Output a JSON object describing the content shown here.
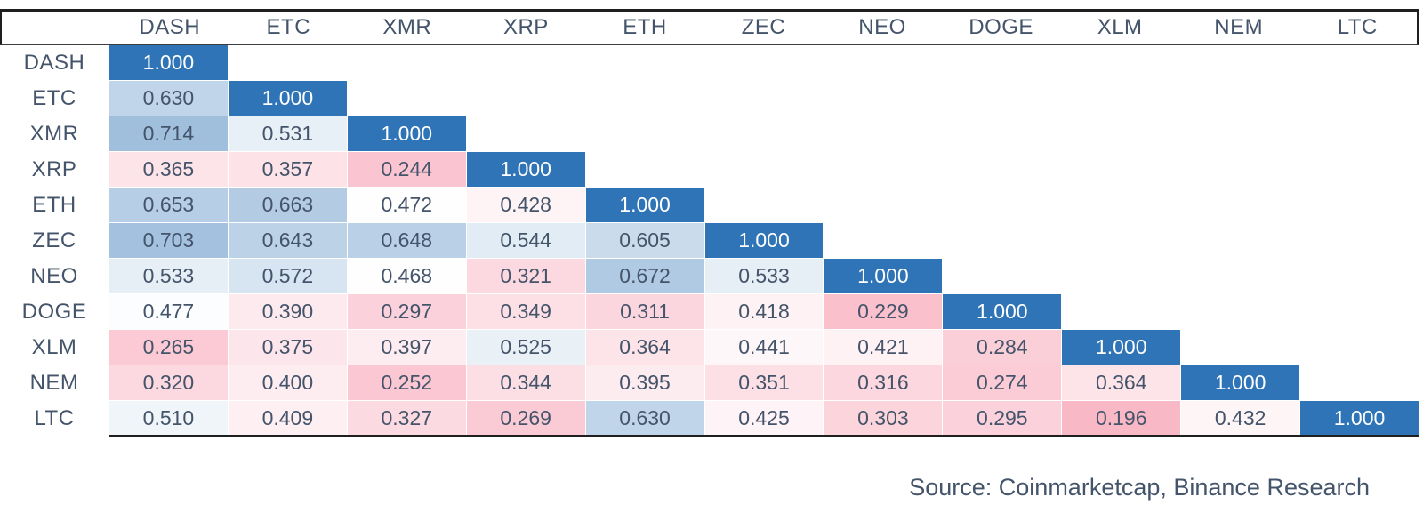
{
  "chart_data": {
    "type": "heatmap",
    "title": "",
    "layout": "lower-triangle",
    "x_labels": [
      "DASH",
      "ETC",
      "XMR",
      "XRP",
      "ETH",
      "ZEC",
      "NEO",
      "DOGE",
      "XLM",
      "NEM",
      "LTC"
    ],
    "y_labels": [
      "DASH",
      "ETC",
      "XMR",
      "XRP",
      "ETH",
      "ZEC",
      "NEO",
      "DOGE",
      "XLM",
      "NEM",
      "LTC"
    ],
    "matrix": [
      [
        1.0
      ],
      [
        0.63,
        1.0
      ],
      [
        0.714,
        0.531,
        1.0
      ],
      [
        0.365,
        0.357,
        0.244,
        1.0
      ],
      [
        0.653,
        0.663,
        0.472,
        0.428,
        1.0
      ],
      [
        0.703,
        0.643,
        0.648,
        0.544,
        0.605,
        1.0
      ],
      [
        0.533,
        0.572,
        0.468,
        0.321,
        0.672,
        0.533,
        1.0
      ],
      [
        0.477,
        0.39,
        0.297,
        0.349,
        0.311,
        0.418,
        0.229,
        1.0
      ],
      [
        0.265,
        0.375,
        0.397,
        0.525,
        0.364,
        0.441,
        0.421,
        0.284,
        1.0
      ],
      [
        0.32,
        0.4,
        0.252,
        0.344,
        0.395,
        0.351,
        0.316,
        0.274,
        0.364,
        1.0
      ],
      [
        0.51,
        0.409,
        0.327,
        0.269,
        0.63,
        0.425,
        0.303,
        0.295,
        0.196,
        0.432,
        1.0
      ]
    ],
    "value_decimals": 3,
    "colormap": {
      "low": "#F9B8C6",
      "mid": "#FFFFFF",
      "high": "#2F74B6",
      "low_value": 0.196,
      "mid_value": 0.47,
      "high_value": 1.0
    }
  },
  "footer": {
    "source_label": "Source: Coinmarketcap, Binance Research"
  },
  "colors": {
    "header_text": "#44546A",
    "cell_text": "#44546A",
    "diagonal_bg": "#2F74B6",
    "diagonal_text": "#FFFFFF",
    "rule_dark": "#1F1F1F"
  }
}
